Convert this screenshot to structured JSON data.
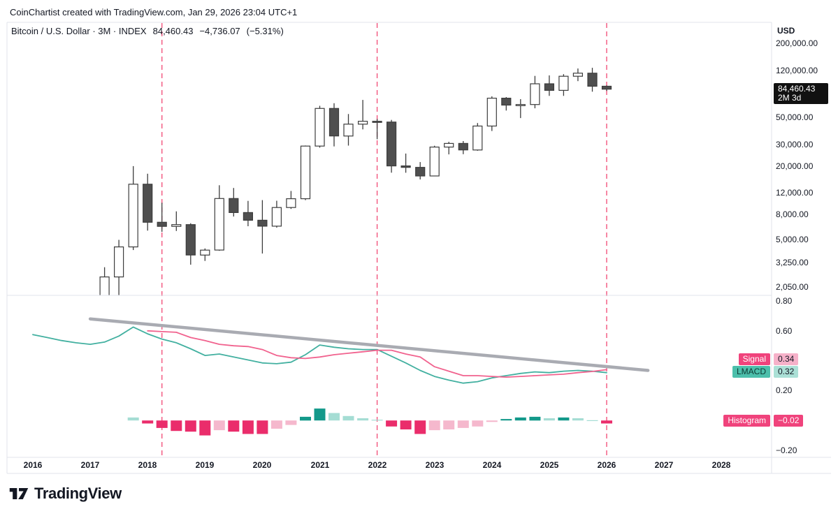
{
  "meta": {
    "attribution": "CoinChartist created with TradingView.com, Jan 29, 2026 23:04 UTC+1"
  },
  "header": {
    "symbol_title": "Bitcoin / U.S. Dollar · 3M · INDEX",
    "last_price": "84,460.43",
    "change": "−4,736.07",
    "change_pct": "(−5.31%)"
  },
  "price_axis": {
    "currency": "USD",
    "price_label": {
      "price": "84,460.43",
      "countdown": "2M 3d"
    }
  },
  "indicator_badges": {
    "signal": {
      "label": "Signal",
      "value": "0.34"
    },
    "lmacd": {
      "label": "LMACD",
      "value": "0.32"
    },
    "histogram": {
      "label": "Histogram",
      "value": "−0.02"
    }
  },
  "footer": {
    "brand": "TradingView"
  },
  "colors": {
    "accent_pink": "#f0437c",
    "accent_pink_light": "#f6b1c9",
    "accent_teal": "#4cbfab",
    "accent_teal_light": "#abe0d6",
    "line_lmacd": "#42b0a0",
    "line_signal": "#f1628e",
    "vline": "#f2547d",
    "trendline": "#a9abb2",
    "candle_up_fill": "#ffffff",
    "candle_down_fill": "#4f4f4f",
    "candle_border": "#3d3d3d",
    "hist": {
      "dt": "#13998a",
      "lt": "#a5ddd4",
      "dp": "#ea2d6b",
      "lp": "#f5b8cd"
    },
    "label_box_bg": "#111111",
    "text": "#131722",
    "border": "#e0e3eb"
  },
  "chart_data": [
    {
      "type": "candlestick",
      "title": "Bitcoin / U.S. Dollar · 3M · INDEX",
      "interval": "3M",
      "currency": "USD",
      "yscale": "log",
      "ylim": [
        1850,
        230000
      ],
      "grid": false,
      "last": {
        "price": 84460.43,
        "change": -4736.07,
        "change_pct": -5.31,
        "countdown": "2M 3d"
      },
      "vlines_years": [
        2018.25,
        2022,
        2026
      ],
      "y_ticks": [
        {
          "v": 200000,
          "label": "200,000.00"
        },
        {
          "v": 120000,
          "label": "120,000.00"
        },
        {
          "v": 50000,
          "label": "50,000.00"
        },
        {
          "v": 30000,
          "label": "30,000.00"
        },
        {
          "v": 20000,
          "label": "20,000.00"
        },
        {
          "v": 12000,
          "label": "12,000.00"
        },
        {
          "v": 8000,
          "label": "8,000.00"
        },
        {
          "v": 5000,
          "label": "5,000.00"
        },
        {
          "v": 3250,
          "label": "3,250.00"
        },
        {
          "v": 2050,
          "label": "2,050.00"
        }
      ],
      "x_ticks": [
        {
          "t": 2016,
          "label": "2016"
        },
        {
          "t": 2017,
          "label": "2017"
        },
        {
          "t": 2018,
          "label": "2018"
        },
        {
          "t": 2019,
          "label": "2019"
        },
        {
          "t": 2020,
          "label": "2020"
        },
        {
          "t": 2021,
          "label": "2021"
        },
        {
          "t": 2022,
          "label": "2022"
        },
        {
          "t": 2023,
          "label": "2023"
        },
        {
          "t": 2024,
          "label": "2024"
        },
        {
          "t": 2025,
          "label": "2025"
        },
        {
          "t": 2026,
          "label": "2026"
        },
        {
          "t": 2027,
          "label": "2027"
        },
        {
          "t": 2028,
          "label": "2028"
        }
      ],
      "candles_columns": [
        "year_decimal",
        "open",
        "high",
        "low",
        "close"
      ],
      "candles": [
        [
          2017.25,
          1071,
          2978,
          938,
          2480
        ],
        [
          2017.5,
          2480,
          4980,
          1758,
          4360
        ],
        [
          2017.75,
          4360,
          19892,
          4110,
          14156
        ],
        [
          2018.0,
          14156,
          17234,
          5920,
          6928
        ],
        [
          2018.25,
          6928,
          9990,
          5785,
          6411
        ],
        [
          2018.5,
          6411,
          8507,
          5880,
          6626
        ],
        [
          2018.75,
          6626,
          6800,
          3122,
          3742
        ],
        [
          2019.0,
          3742,
          4236,
          3349,
          4105
        ],
        [
          2019.25,
          4105,
          13880,
          4052,
          10817
        ],
        [
          2019.5,
          10817,
          13200,
          7714,
          8310
        ],
        [
          2019.75,
          8310,
          10350,
          6425,
          7193
        ],
        [
          2020.0,
          7193,
          10500,
          3850,
          6438
        ],
        [
          2020.25,
          6438,
          10380,
          6260,
          9137
        ],
        [
          2020.5,
          9137,
          12475,
          8900,
          10784
        ],
        [
          2020.75,
          10784,
          29300,
          10500,
          28996
        ],
        [
          2021.0,
          28996,
          61844,
          28130,
          58789
        ],
        [
          2021.25,
          58789,
          64899,
          28800,
          35040
        ],
        [
          2021.5,
          35040,
          52920,
          29278,
          43790
        ],
        [
          2021.75,
          43790,
          69000,
          39650,
          46216
        ],
        [
          2022.0,
          46216,
          48240,
          32950,
          45538
        ],
        [
          2022.25,
          45538,
          47450,
          17592,
          19985
        ],
        [
          2022.5,
          19985,
          25211,
          17567,
          19431
        ],
        [
          2022.75,
          19431,
          21480,
          15476,
          16537
        ],
        [
          2023.0,
          16537,
          29190,
          16490,
          28473
        ],
        [
          2023.25,
          28473,
          31400,
          24800,
          30472
        ],
        [
          2023.5,
          30472,
          31850,
          24900,
          26962
        ],
        [
          2023.75,
          26962,
          44700,
          26538,
          42265
        ],
        [
          2024.0,
          42265,
          73794,
          38501,
          71333
        ],
        [
          2024.25,
          71333,
          72797,
          56500,
          62678
        ],
        [
          2024.5,
          62678,
          70000,
          49050,
          63301
        ],
        [
          2024.75,
          63301,
          108365,
          58946,
          93429
        ],
        [
          2025.0,
          93429,
          109358,
          74508,
          82549
        ],
        [
          2025.25,
          82549,
          111980,
          74420,
          107607
        ],
        [
          2025.5,
          107607,
          124474,
          98240,
          114056
        ],
        [
          2025.75,
          114056,
          126270,
          80600,
          89196
        ],
        [
          2026.0,
          89196.5,
          90500,
          81700,
          84460.43
        ]
      ]
    },
    {
      "type": "macd",
      "name": "LMACD",
      "ylim": [
        -0.25,
        0.85
      ],
      "y_ticks": [
        {
          "v": 0.8,
          "label": "0.80"
        },
        {
          "v": 0.6,
          "label": "0.60"
        },
        {
          "v": 0.2,
          "label": "0.20"
        },
        {
          "v": -0.2,
          "label": "−0.20"
        }
      ],
      "last_values": {
        "signal": 0.34,
        "lmacd": 0.32,
        "histogram": -0.02
      },
      "series": [
        {
          "name": "LMACD",
          "style": "line",
          "color_key": "line_lmacd",
          "t": [
            2016.0,
            2016.25,
            2016.5,
            2016.75,
            2017.0,
            2017.25,
            2017.5,
            2017.75,
            2018.0,
            2018.25,
            2018.5,
            2018.75,
            2019.0,
            2019.25,
            2019.5,
            2019.75,
            2020.0,
            2020.25,
            2020.5,
            2020.75,
            2021.0,
            2021.25,
            2021.5,
            2021.75,
            2022.0,
            2022.25,
            2022.5,
            2022.75,
            2023.0,
            2023.25,
            2023.5,
            2023.75,
            2024.0,
            2024.25,
            2024.5,
            2024.75,
            2025.0,
            2025.25,
            2025.5,
            2025.75,
            2026.0
          ],
          "v": [
            0.575,
            0.555,
            0.535,
            0.52,
            0.51,
            0.525,
            0.565,
            0.625,
            0.58,
            0.545,
            0.52,
            0.48,
            0.435,
            0.445,
            0.425,
            0.405,
            0.385,
            0.38,
            0.39,
            0.44,
            0.505,
            0.49,
            0.48,
            0.475,
            0.475,
            0.43,
            0.385,
            0.335,
            0.295,
            0.27,
            0.25,
            0.26,
            0.285,
            0.3,
            0.315,
            0.325,
            0.32,
            0.33,
            0.335,
            0.33,
            0.32
          ]
        },
        {
          "name": "Signal",
          "style": "line",
          "color_key": "line_signal",
          "t": [
            2018.0,
            2018.25,
            2018.5,
            2018.75,
            2019.0,
            2019.25,
            2019.5,
            2019.75,
            2020.0,
            2020.25,
            2020.5,
            2020.75,
            2021.0,
            2021.25,
            2021.5,
            2021.75,
            2022.0,
            2022.25,
            2022.5,
            2022.75,
            2023.0,
            2023.25,
            2023.5,
            2023.75,
            2024.0,
            2024.25,
            2024.5,
            2024.75,
            2025.0,
            2025.25,
            2025.5,
            2025.75,
            2026.0
          ],
          "v": [
            0.6,
            0.595,
            0.59,
            0.555,
            0.535,
            0.51,
            0.5,
            0.495,
            0.475,
            0.435,
            0.42,
            0.415,
            0.425,
            0.44,
            0.45,
            0.46,
            0.47,
            0.47,
            0.445,
            0.425,
            0.36,
            0.33,
            0.3,
            0.3,
            0.295,
            0.29,
            0.295,
            0.3,
            0.305,
            0.31,
            0.32,
            0.328,
            0.34
          ]
        }
      ],
      "histogram": {
        "t": [
          2017.75,
          2018.0,
          2018.25,
          2018.5,
          2018.75,
          2019.0,
          2019.25,
          2019.5,
          2019.75,
          2020.0,
          2020.25,
          2020.5,
          2020.75,
          2021.0,
          2021.25,
          2021.5,
          2021.75,
          2022.0,
          2022.25,
          2022.5,
          2022.75,
          2023.0,
          2023.25,
          2023.5,
          2023.75,
          2024.0,
          2024.25,
          2024.5,
          2024.75,
          2025.0,
          2025.25,
          2025.5,
          2025.75,
          2026.0
        ],
        "v": [
          0.02,
          -0.02,
          -0.05,
          -0.07,
          -0.075,
          -0.1,
          -0.065,
          -0.075,
          -0.09,
          -0.09,
          -0.055,
          -0.03,
          0.025,
          0.08,
          0.05,
          0.03,
          0.015,
          0.005,
          -0.04,
          -0.06,
          -0.09,
          -0.065,
          -0.06,
          -0.05,
          -0.04,
          -0.01,
          0.01,
          0.02,
          0.025,
          0.015,
          0.02,
          0.015,
          0.002,
          -0.02
        ],
        "shade": [
          "lt",
          "dp",
          "dp",
          "dp",
          "dp",
          "dp",
          "lp",
          "dp",
          "dp",
          "dp",
          "lp",
          "lp",
          "dt",
          "dt",
          "lt",
          "lt",
          "lt",
          "lt",
          "dp",
          "dp",
          "dp",
          "lp",
          "lp",
          "lp",
          "lp",
          "lp",
          "dt",
          "dt",
          "dt",
          "lt",
          "dt",
          "lt",
          "lt",
          "dp"
        ]
      },
      "trendline": {
        "t1": 2017.0,
        "v1": 0.68,
        "t2": 2026.72,
        "v2": 0.335
      }
    }
  ]
}
